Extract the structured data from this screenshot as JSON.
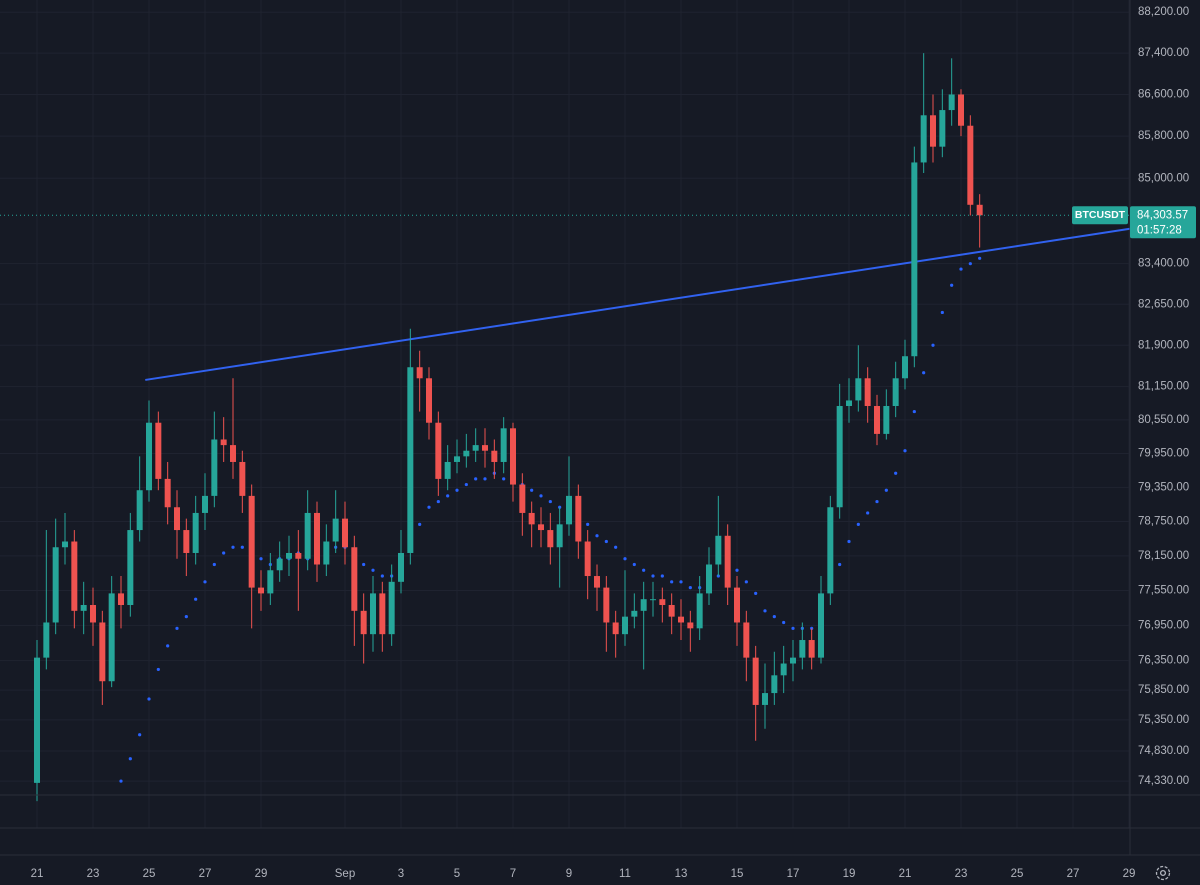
{
  "chart_data": {
    "type": "candlestick",
    "symbol": "BTCUSDT",
    "last_price": {
      "value": 84303.57,
      "label": "84,303.57"
    },
    "countdown": "01:57:28",
    "log": true,
    "grid": true,
    "up_color": "#26a69a",
    "down_color": "#ef5350",
    "indicator_color": "#2962ff",
    "trend_color": "#3162f0",
    "ylim": [
      74100,
      88440
    ],
    "yticks": [
      {
        "value": 88200,
        "label": "88,200.00"
      },
      {
        "value": 87400,
        "label": "87,400.00"
      },
      {
        "value": 86600,
        "label": "86,600.00"
      },
      {
        "value": 85800,
        "label": "85,800.00"
      },
      {
        "value": 85000,
        "label": "85,000.00"
      },
      {
        "value": 83400,
        "label": "83,400.00"
      },
      {
        "value": 82650,
        "label": "82,650.00"
      },
      {
        "value": 81900,
        "label": "81,900.00"
      },
      {
        "value": 81150,
        "label": "81,150.00"
      },
      {
        "value": 80550,
        "label": "80,550.00"
      },
      {
        "value": 79950,
        "label": "79,950.00"
      },
      {
        "value": 79350,
        "label": "79,350.00"
      },
      {
        "value": 78750,
        "label": "78,750.00"
      },
      {
        "value": 78150,
        "label": "78,150.00"
      },
      {
        "value": 77550,
        "label": "77,550.00"
      },
      {
        "value": 76950,
        "label": "76,950.00"
      },
      {
        "value": 76350,
        "label": "76,350.00"
      },
      {
        "value": 75850,
        "label": "75,850.00"
      },
      {
        "value": 75350,
        "label": "75,350.00"
      },
      {
        "value": 74830,
        "label": "74,830.00"
      },
      {
        "value": 74330,
        "label": "74,330.00"
      }
    ],
    "categories": [
      "21",
      null,
      null,
      null,
      null,
      null,
      "23",
      null,
      null,
      null,
      null,
      null,
      "25",
      null,
      null,
      null,
      null,
      null,
      "27",
      null,
      null,
      null,
      null,
      null,
      "29",
      null,
      null,
      null,
      null,
      null,
      null,
      null,
      null,
      "Sep",
      null,
      null,
      null,
      null,
      null,
      "3",
      null,
      null,
      null,
      null,
      null,
      "5",
      null,
      null,
      null,
      null,
      null,
      "7",
      null,
      null,
      null,
      null,
      null,
      "9",
      null,
      null,
      null,
      null,
      null,
      "11",
      null,
      null,
      null,
      null,
      null,
      "13",
      null,
      null,
      null,
      null,
      null,
      "15",
      null,
      null,
      null,
      null,
      null,
      "17",
      null,
      null,
      null,
      null,
      null,
      "19",
      null,
      null,
      null,
      null,
      null,
      "21",
      null,
      null,
      null,
      null,
      null,
      "23",
      null,
      null,
      null,
      null,
      null,
      "25",
      null,
      null,
      null,
      null,
      null,
      "27",
      null,
      null,
      null,
      null,
      null,
      "29"
    ],
    "open": [
      74300,
      76400,
      77000,
      78300,
      78400,
      77200,
      77300,
      77000,
      76000,
      77500,
      77300,
      78600,
      79300,
      80500,
      79500,
      79000,
      78600,
      78200,
      78900,
      79200,
      80200,
      80100,
      79800,
      79200,
      77600,
      77500,
      77900,
      78100,
      78200,
      78100,
      78900,
      78000,
      78400,
      78800,
      78300,
      77200,
      76800,
      77500,
      76800,
      77700,
      78200,
      81500,
      81300,
      80500,
      79500,
      79800,
      79900,
      80000,
      80100,
      80000,
      79800,
      80400,
      79400,
      78900,
      78700,
      78600,
      78300,
      78700,
      79200,
      78400,
      77800,
      77600,
      77000,
      76800,
      77100,
      77200,
      77400,
      77400,
      77300,
      77100,
      77000,
      76900,
      77500,
      78000,
      78500,
      77600,
      77000,
      76400,
      75600,
      75800,
      76100,
      76300,
      76400,
      76700,
      76400,
      77500,
      79000,
      80800,
      80900,
      81300,
      80800,
      80300,
      80800,
      81300,
      81700,
      85300,
      86200,
      85600,
      86300,
      86600,
      86000,
      84500,
      null,
      null,
      null,
      null,
      null,
      null,
      null,
      null,
      null,
      null,
      null,
      null,
      null,
      null,
      null,
      null
    ],
    "high": [
      76700,
      78600,
      78800,
      78900,
      78600,
      77700,
      77600,
      77200,
      77800,
      77800,
      78900,
      79900,
      80900,
      80700,
      79800,
      79300,
      78800,
      79200,
      79600,
      80700,
      80600,
      81300,
      80000,
      79400,
      77900,
      78200,
      78400,
      78500,
      78600,
      79300,
      79100,
      78700,
      79300,
      79100,
      78500,
      77500,
      77800,
      77700,
      78000,
      78600,
      82200,
      81800,
      81500,
      80700,
      80100,
      80200,
      80300,
      80400,
      80400,
      80200,
      80600,
      80500,
      79600,
      79100,
      79000,
      78900,
      79000,
      79900,
      79400,
      78600,
      78000,
      77800,
      77200,
      77900,
      77500,
      77700,
      77700,
      77600,
      77500,
      77400,
      77200,
      77800,
      78300,
      79200,
      78700,
      77800,
      77200,
      76600,
      76300,
      76500,
      76600,
      76700,
      77000,
      76900,
      77800,
      79200,
      81200,
      81300,
      81900,
      81500,
      81000,
      81100,
      81600,
      82000,
      85600,
      87400,
      86600,
      86700,
      87300,
      86700,
      86200,
      84700,
      null,
      null,
      null,
      null,
      null,
      null,
      null,
      null,
      null,
      null,
      null,
      null,
      null,
      null,
      null,
      null
    ],
    "low": [
      74000,
      76200,
      76800,
      78000,
      76900,
      76800,
      76600,
      75600,
      75900,
      76900,
      77100,
      78400,
      79100,
      79300,
      78700,
      78100,
      77800,
      78000,
      78600,
      79000,
      79800,
      79500,
      78900,
      76900,
      77200,
      77300,
      77700,
      77800,
      77200,
      77900,
      77700,
      77800,
      78200,
      78000,
      76600,
      76300,
      76500,
      76500,
      76600,
      77500,
      78000,
      80700,
      80200,
      79200,
      79300,
      79600,
      79700,
      79800,
      79700,
      79500,
      79600,
      79100,
      78500,
      78300,
      78300,
      78000,
      77600,
      78500,
      78100,
      77400,
      77200,
      76500,
      76400,
      76600,
      76900,
      76200,
      77100,
      77000,
      76800,
      76700,
      76500,
      76700,
      77300,
      77800,
      77300,
      76600,
      76000,
      75000,
      75200,
      75600,
      75800,
      76000,
      76200,
      76200,
      76300,
      77300,
      78800,
      80500,
      80700,
      80500,
      80100,
      80200,
      80600,
      81100,
      81500,
      85100,
      85300,
      85400,
      86000,
      85800,
      84300,
      83700,
      null,
      null,
      null,
      null,
      null,
      null,
      null,
      null,
      null,
      null,
      null,
      null,
      null,
      null,
      null,
      null
    ],
    "close": [
      76400,
      77000,
      78300,
      78400,
      77200,
      77300,
      77000,
      76000,
      77500,
      77300,
      78600,
      79300,
      80500,
      79500,
      79000,
      78600,
      78200,
      78900,
      79200,
      80200,
      80100,
      79800,
      79200,
      77600,
      77500,
      77900,
      78100,
      78200,
      78100,
      78900,
      78000,
      78400,
      78800,
      78300,
      77200,
      76800,
      77500,
      76800,
      77700,
      78200,
      81500,
      81300,
      80500,
      79500,
      79800,
      79900,
      80000,
      80100,
      80000,
      79800,
      80400,
      79400,
      78900,
      78700,
      78600,
      78300,
      78700,
      79200,
      78400,
      77800,
      77600,
      77000,
      76800,
      77100,
      77200,
      77400,
      77400,
      77300,
      77100,
      77000,
      76900,
      77500,
      78000,
      78500,
      77600,
      77000,
      76400,
      75600,
      75800,
      76100,
      76300,
      76400,
      76700,
      76400,
      77500,
      79000,
      80800,
      80900,
      81300,
      80800,
      80300,
      80800,
      81300,
      81700,
      85300,
      86200,
      85600,
      86300,
      86600,
      86000,
      84500,
      84303.57,
      null,
      null,
      null,
      null,
      null,
      null,
      null,
      null,
      null,
      null,
      null,
      null,
      null,
      null,
      null,
      null
    ],
    "indicator": [
      null,
      null,
      null,
      null,
      null,
      null,
      null,
      null,
      null,
      74330,
      74700,
      75100,
      75700,
      76200,
      76600,
      76900,
      77100,
      77400,
      77700,
      78000,
      78200,
      78300,
      78300,
      78200,
      78100,
      78000,
      78100,
      78100,
      78200,
      78100,
      78200,
      78300,
      78300,
      78300,
      78100,
      78000,
      77900,
      77800,
      77800,
      77800,
      78300,
      78700,
      79000,
      79100,
      79200,
      79300,
      79400,
      79500,
      79500,
      79600,
      79500,
      79500,
      79400,
      79300,
      79200,
      79100,
      79000,
      78900,
      78900,
      78700,
      78500,
      78400,
      78300,
      78100,
      78000,
      77900,
      77800,
      77800,
      77700,
      77700,
      77600,
      77600,
      77700,
      77800,
      77900,
      77900,
      77700,
      77500,
      77200,
      77100,
      77000,
      76900,
      76900,
      76900,
      77200,
      77600,
      78000,
      78400,
      78700,
      78900,
      79100,
      79300,
      79600,
      80000,
      80700,
      81400,
      81900,
      82500,
      83000,
      83300,
      83400,
      83500,
      null,
      null,
      null,
      null,
      null,
      null,
      null,
      null,
      null,
      null,
      null,
      null,
      null,
      null,
      null,
      null
    ],
    "trend_line": {
      "x": [
        11.6,
        117.1
      ],
      "y": [
        81270,
        84050
      ]
    }
  }
}
